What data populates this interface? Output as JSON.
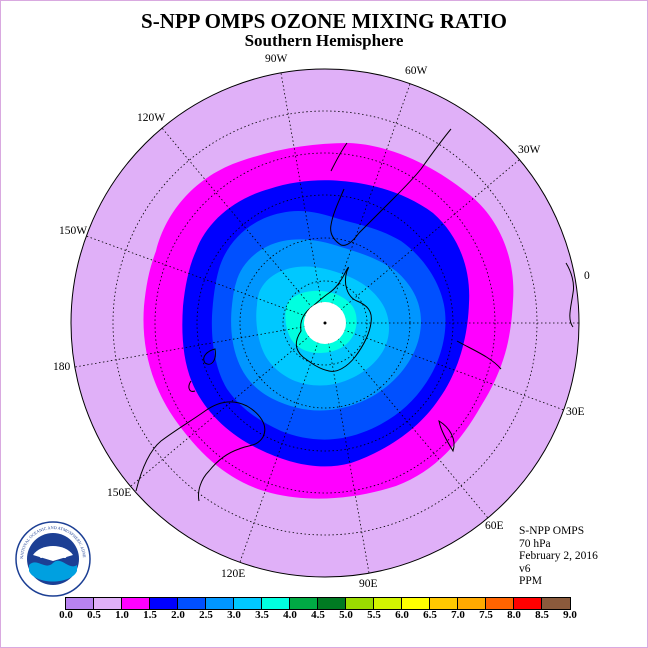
{
  "title": "S-NPP OMPS OZONE MIXING RATIO",
  "subtitle": "Southern Hemisphere",
  "longitude_labels": [
    "90W",
    "60W",
    "30W",
    "0",
    "30E",
    "60E",
    "90E",
    "120E",
    "150E",
    "180",
    "150W",
    "120W"
  ],
  "info": {
    "instrument": "S-NPP OMPS",
    "pressure_level": "70 hPa",
    "date": "February 2, 2016",
    "version": "v6",
    "units": "PPM"
  },
  "logo": {
    "text": "NOAA",
    "ring_text": "NATIONAL OCEANIC AND ATMOSPHERIC ADMINISTRATION · U.S. DEPARTMENT OF COMMERCE"
  },
  "colorbar": {
    "colors": [
      "#b883f0",
      "#e0b0f8",
      "#ff00ff",
      "#0000ff",
      "#0050ff",
      "#0096ff",
      "#00c8ff",
      "#00ffe0",
      "#00aa44",
      "#007a22",
      "#9bdc00",
      "#d2f500",
      "#ffff00",
      "#ffc800",
      "#ffaa00",
      "#ff6400",
      "#ff0000",
      "#8b5a3c"
    ],
    "ticks": [
      "0.0",
      "0.5",
      "1.0",
      "1.5",
      "2.0",
      "2.5",
      "3.0",
      "3.5",
      "4.0",
      "4.5",
      "5.0",
      "5.5",
      "6.0",
      "6.5",
      "7.0",
      "7.5",
      "8.0",
      "8.5",
      "9.0"
    ]
  },
  "map": {
    "projection": "south polar stereographic",
    "field_levels_ppm": [
      0.5,
      1.0,
      1.5,
      2.0,
      2.5,
      3.0,
      3.5
    ],
    "polar_night_fill": "#ffffff"
  }
}
